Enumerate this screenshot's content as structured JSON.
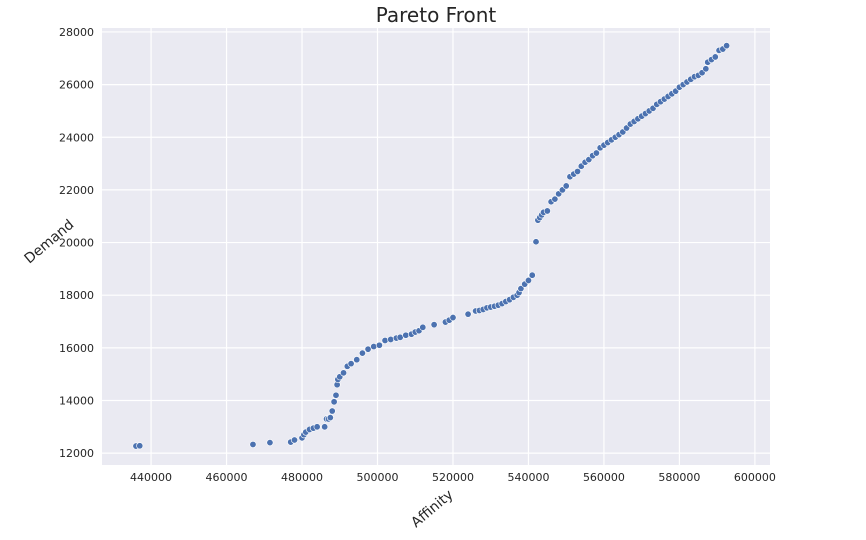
{
  "chart_data": {
    "type": "scatter",
    "title": "Pareto Front",
    "xlabel": "Affinity",
    "ylabel": "Demand",
    "xlim": [
      427000,
      604000
    ],
    "ylim": [
      11550,
      28150
    ],
    "xticks": [
      440000,
      460000,
      480000,
      500000,
      520000,
      540000,
      560000,
      580000,
      600000
    ],
    "yticks": [
      12000,
      14000,
      16000,
      18000,
      20000,
      22000,
      24000,
      26000,
      28000
    ],
    "xtick_labels": [
      "440000",
      "460000",
      "480000",
      "500000",
      "520000",
      "540000",
      "560000",
      "580000",
      "600000"
    ],
    "ytick_labels": [
      "12000",
      "14000",
      "16000",
      "18000",
      "20000",
      "22000",
      "24000",
      "26000",
      "28000"
    ],
    "grid": true,
    "point_color": "#4c72b0",
    "background_color": "#eaeaf2",
    "points": [
      [
        436000,
        12270
      ],
      [
        437000,
        12280
      ],
      [
        467000,
        12330
      ],
      [
        471500,
        12400
      ],
      [
        477000,
        12420
      ],
      [
        478000,
        12500
      ],
      [
        480000,
        12580
      ],
      [
        480500,
        12700
      ],
      [
        481000,
        12800
      ],
      [
        482000,
        12900
      ],
      [
        483000,
        12950
      ],
      [
        484000,
        13000
      ],
      [
        486000,
        13000
      ],
      [
        486500,
        13300
      ],
      [
        487000,
        13300
      ],
      [
        487500,
        13350
      ],
      [
        488000,
        13600
      ],
      [
        488500,
        13950
      ],
      [
        489000,
        14200
      ],
      [
        489300,
        14600
      ],
      [
        489500,
        14800
      ],
      [
        490000,
        14900
      ],
      [
        491000,
        15050
      ],
      [
        492000,
        15300
      ],
      [
        493000,
        15400
      ],
      [
        494500,
        15550
      ],
      [
        496000,
        15800
      ],
      [
        497500,
        15950
      ],
      [
        499000,
        16050
      ],
      [
        500500,
        16100
      ],
      [
        502000,
        16280
      ],
      [
        503500,
        16320
      ],
      [
        505000,
        16370
      ],
      [
        506000,
        16400
      ],
      [
        507500,
        16480
      ],
      [
        509000,
        16520
      ],
      [
        510000,
        16600
      ],
      [
        511000,
        16650
      ],
      [
        512000,
        16780
      ],
      [
        515000,
        16880
      ],
      [
        518000,
        16980
      ],
      [
        519000,
        17050
      ],
      [
        520000,
        17150
      ],
      [
        524000,
        17280
      ],
      [
        526000,
        17400
      ],
      [
        527000,
        17420
      ],
      [
        528000,
        17460
      ],
      [
        529000,
        17520
      ],
      [
        530000,
        17550
      ],
      [
        531000,
        17580
      ],
      [
        532000,
        17620
      ],
      [
        533000,
        17680
      ],
      [
        534000,
        17760
      ],
      [
        535000,
        17830
      ],
      [
        536000,
        17920
      ],
      [
        537000,
        18000
      ],
      [
        537500,
        18100
      ],
      [
        538000,
        18250
      ],
      [
        539000,
        18420
      ],
      [
        540000,
        18560
      ],
      [
        541000,
        18760
      ],
      [
        542000,
        20030
      ],
      [
        542500,
        20850
      ],
      [
        543000,
        20950
      ],
      [
        543500,
        21050
      ],
      [
        544000,
        21150
      ],
      [
        545000,
        21200
      ],
      [
        546000,
        21550
      ],
      [
        547000,
        21650
      ],
      [
        548000,
        21850
      ],
      [
        549000,
        22000
      ],
      [
        550000,
        22150
      ],
      [
        551000,
        22500
      ],
      [
        552000,
        22600
      ],
      [
        553000,
        22700
      ],
      [
        554000,
        22900
      ],
      [
        555000,
        23050
      ],
      [
        556000,
        23150
      ],
      [
        557000,
        23300
      ],
      [
        558000,
        23400
      ],
      [
        559000,
        23600
      ],
      [
        560000,
        23700
      ],
      [
        561000,
        23800
      ],
      [
        562000,
        23900
      ],
      [
        563000,
        24000
      ],
      [
        564000,
        24100
      ],
      [
        565000,
        24200
      ],
      [
        566000,
        24350
      ],
      [
        567000,
        24500
      ],
      [
        568000,
        24600
      ],
      [
        569000,
        24700
      ],
      [
        570000,
        24800
      ],
      [
        571000,
        24900
      ],
      [
        572000,
        25000
      ],
      [
        573000,
        25100
      ],
      [
        574000,
        25250
      ],
      [
        575000,
        25350
      ],
      [
        576000,
        25450
      ],
      [
        577000,
        25550
      ],
      [
        578000,
        25650
      ],
      [
        579000,
        25750
      ],
      [
        580000,
        25900
      ],
      [
        581000,
        26000
      ],
      [
        582000,
        26100
      ],
      [
        583000,
        26200
      ],
      [
        584000,
        26300
      ],
      [
        585000,
        26350
      ],
      [
        586000,
        26450
      ],
      [
        587000,
        26600
      ],
      [
        587500,
        26850
      ],
      [
        588500,
        26950
      ],
      [
        589500,
        27050
      ],
      [
        590500,
        27300
      ],
      [
        591500,
        27350
      ],
      [
        592500,
        27480
      ]
    ]
  }
}
